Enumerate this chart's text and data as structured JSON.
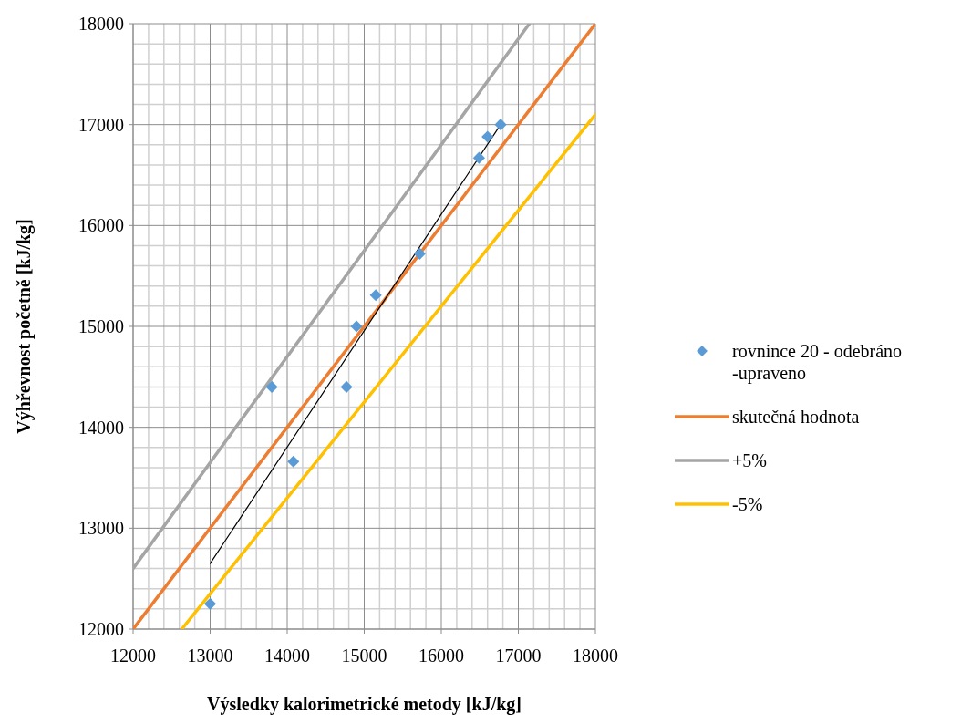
{
  "chart_data": {
    "type": "scatter",
    "xlabel": "Výsledky kalorimetrické metody [kJ/kg]",
    "ylabel": "Výhřevnost početně [kJ/kg]",
    "xlim": [
      12000,
      18000
    ],
    "ylim": [
      12000,
      18000
    ],
    "xticks": [
      12000,
      13000,
      14000,
      15000,
      16000,
      17000,
      18000
    ],
    "yticks": [
      12000,
      13000,
      14000,
      15000,
      16000,
      17000,
      18000
    ],
    "grid": true,
    "legend": "right",
    "series": [
      {
        "name": "rovnince 20 - odebráno -upraveno",
        "marker": "diamond",
        "color": "#5b9bd5",
        "x": [
          13000,
          13800,
          14080,
          14770,
          14900,
          15150,
          15720,
          16490,
          16600,
          16770
        ],
        "values": [
          12250,
          14400,
          13660,
          14400,
          15000,
          15310,
          15720,
          16670,
          16880,
          17000
        ]
      },
      {
        "name": "skutečná hodnota",
        "type": "line",
        "color": "#ed7d31",
        "x": [
          12000,
          18000
        ],
        "values": [
          12000,
          18000
        ]
      },
      {
        "name": "+5%",
        "type": "line",
        "color": "#a5a5a5",
        "x": [
          12000,
          17143
        ],
        "values": [
          12600,
          18000
        ]
      },
      {
        "name": "-5%",
        "type": "line",
        "color": "#ffc000",
        "x": [
          12632,
          18000
        ],
        "values": [
          12000,
          17100
        ]
      },
      {
        "type": "line",
        "color": "#000000",
        "x": [
          13000,
          16770
        ],
        "values": [
          12650,
          17000
        ]
      }
    ]
  }
}
